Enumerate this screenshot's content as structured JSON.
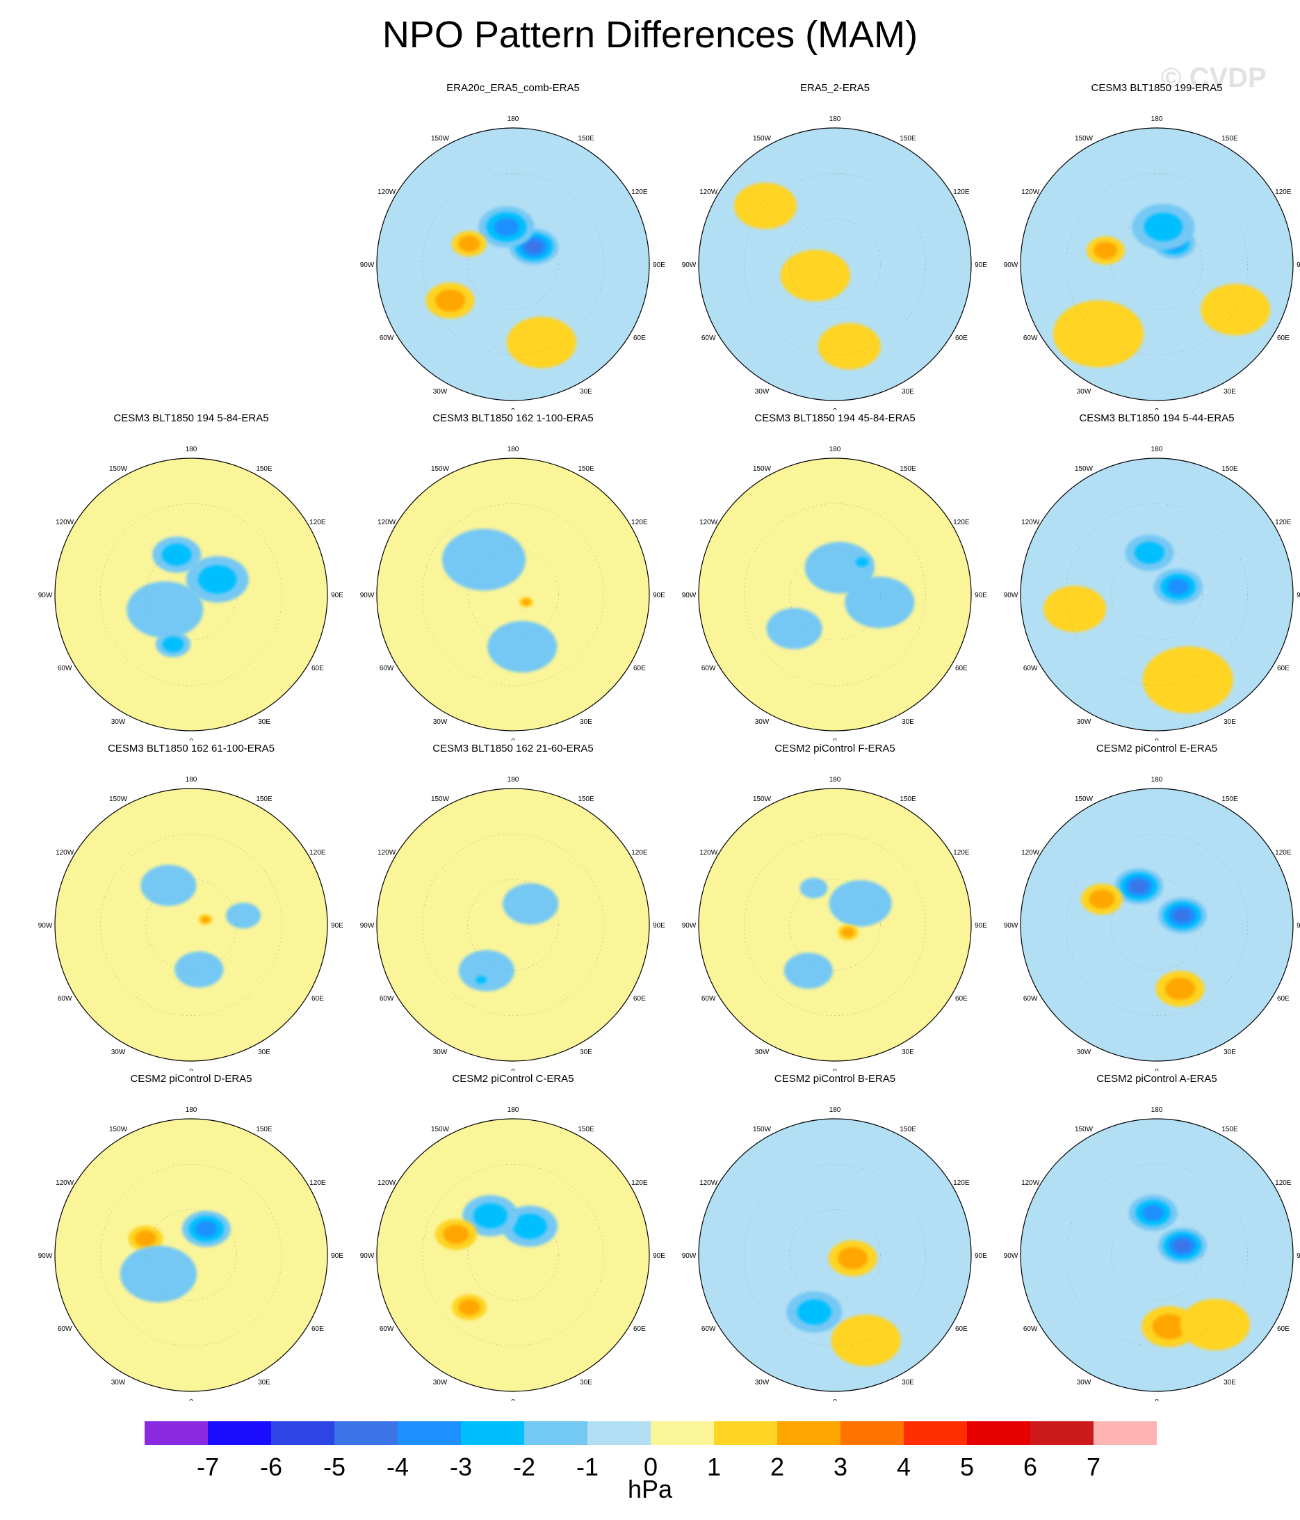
{
  "title": "NPO Pattern Differences (MAM)",
  "watermark": "© CVDP",
  "map": {
    "lon_labels": [
      "180",
      "150E",
      "120E",
      "90E",
      "60E",
      "30E",
      "0",
      "30W",
      "60W",
      "90W",
      "120W",
      "150W"
    ]
  },
  "panels": [
    {
      "title": "ERA20c_ERA5_comb-ERA5",
      "row": 0,
      "col": 1,
      "base": "light-blue",
      "blobs": [
        {
          "lat": 72,
          "lon": 130,
          "r": 14,
          "level": -4
        },
        {
          "lat": 65,
          "lon": -170,
          "r": 16,
          "level": -3
        },
        {
          "lat": 42,
          "lon": -60,
          "r": 14,
          "level": 2
        },
        {
          "lat": 58,
          "lon": -115,
          "r": 10,
          "level": 2
        },
        {
          "lat": 35,
          "lon": 20,
          "r": 20,
          "level": 1
        }
      ]
    },
    {
      "title": "ERA5_2-ERA5",
      "row": 0,
      "col": 2,
      "base": "light-blue",
      "blobs": [
        {
          "lat": 82,
          "lon": -40,
          "r": 12,
          "level": 2
        },
        {
          "lat": 75,
          "lon": -60,
          "r": 20,
          "level": 1
        },
        {
          "lat": 30,
          "lon": -130,
          "r": 18,
          "level": 1
        },
        {
          "lat": 35,
          "lon": 10,
          "r": 18,
          "level": 1
        }
      ]
    },
    {
      "title": "CESM3 BLT1850 199-ERA5",
      "row": 0,
      "col": 3,
      "base": "light-blue",
      "blobs": [
        {
          "lat": 72,
          "lon": 140,
          "r": 12,
          "level": -3
        },
        {
          "lat": 65,
          "lon": 170,
          "r": 18,
          "level": -2
        },
        {
          "lat": 55,
          "lon": -105,
          "r": 11,
          "level": 2
        },
        {
          "lat": 30,
          "lon": -40,
          "r": 26,
          "level": 1
        },
        {
          "lat": 30,
          "lon": 60,
          "r": 20,
          "level": 1
        }
      ]
    },
    {
      "title": "CESM3 BLT1850 194 5-84-ERA5",
      "row": 1,
      "col": 0,
      "base": "yellow",
      "blobs": [
        {
          "lat": 70,
          "lon": 120,
          "r": 18,
          "level": -2
        },
        {
          "lat": 62,
          "lon": -160,
          "r": 14,
          "level": -2
        },
        {
          "lat": 70,
          "lon": -60,
          "r": 22,
          "level": -1
        },
        {
          "lat": 55,
          "lon": -20,
          "r": 10,
          "level": -2
        }
      ]
    },
    {
      "title": "CESM3 BLT1850 162 1-100-ERA5",
      "row": 1,
      "col": 1,
      "base": "yellow",
      "blobs": [
        {
          "lat": 60,
          "lon": -140,
          "r": 24,
          "level": -1
        },
        {
          "lat": 55,
          "lon": 10,
          "r": 20,
          "level": -1
        },
        {
          "lat": 80,
          "lon": 60,
          "r": 4,
          "level": 2
        }
      ]
    },
    {
      "title": "CESM3 BLT1850 194 45-84-ERA5",
      "row": 1,
      "col": 2,
      "base": "yellow",
      "blobs": [
        {
          "lat": 72,
          "lon": 170,
          "r": 20,
          "level": -1
        },
        {
          "lat": 60,
          "lon": 80,
          "r": 20,
          "level": -1
        },
        {
          "lat": 62,
          "lon": 140,
          "r": 6,
          "level": -2
        },
        {
          "lat": 55,
          "lon": -50,
          "r": 16,
          "level": -1
        }
      ]
    },
    {
      "title": "CESM3 BLT1850 194 5-44-ERA5",
      "row": 1,
      "col": 3,
      "base": "light-blue",
      "blobs": [
        {
          "lat": 75,
          "lon": 110,
          "r": 14,
          "level": -3
        },
        {
          "lat": 62,
          "lon": -170,
          "r": 14,
          "level": -2
        },
        {
          "lat": 35,
          "lon": -80,
          "r": 18,
          "level": 1
        },
        {
          "lat": 30,
          "lon": 20,
          "r": 26,
          "level": 1
        }
      ]
    },
    {
      "title": "CESM3 BLT1850 162 61-100-ERA5",
      "row": 2,
      "col": 0,
      "base": "yellow",
      "blobs": [
        {
          "lat": 60,
          "lon": -150,
          "r": 16,
          "level": -1
        },
        {
          "lat": 60,
          "lon": 10,
          "r": 14,
          "level": -1
        },
        {
          "lat": 80,
          "lon": 110,
          "r": 4,
          "level": 2
        },
        {
          "lat": 55,
          "lon": 100,
          "r": 10,
          "level": -1
        }
      ]
    },
    {
      "title": "CESM3 BLT1850 162 21-60-ERA5",
      "row": 2,
      "col": 1,
      "base": "yellow",
      "blobs": [
        {
          "lat": 72,
          "lon": 140,
          "r": 16,
          "level": -1
        },
        {
          "lat": 55,
          "lon": -30,
          "r": 16,
          "level": -1
        },
        {
          "lat": 48,
          "lon": -30,
          "r": 5,
          "level": -2
        }
      ]
    },
    {
      "title": "CESM2 piControl F-ERA5",
      "row": 2,
      "col": 2,
      "base": "yellow",
      "blobs": [
        {
          "lat": 68,
          "lon": 130,
          "r": 18,
          "level": -1
        },
        {
          "lat": 80,
          "lon": 60,
          "r": 6,
          "level": 2
        },
        {
          "lat": 55,
          "lon": -30,
          "r": 14,
          "level": -1
        },
        {
          "lat": 62,
          "lon": -150,
          "r": 8,
          "level": -1
        }
      ]
    },
    {
      "title": "CESM2 piControl E-ERA5",
      "row": 2,
      "col": 3,
      "base": "light-blue",
      "blobs": [
        {
          "lat": 72,
          "lon": 110,
          "r": 14,
          "level": -4
        },
        {
          "lat": 62,
          "lon": -155,
          "r": 14,
          "level": -4
        },
        {
          "lat": 45,
          "lon": 20,
          "r": 14,
          "level": 2
        },
        {
          "lat": 50,
          "lon": -115,
          "r": 12,
          "level": 2
        }
      ]
    },
    {
      "title": "CESM2 piControl D-ERA5",
      "row": 3,
      "col": 0,
      "base": "yellow",
      "blobs": [
        {
          "lat": 70,
          "lon": 150,
          "r": 14,
          "level": -3
        },
        {
          "lat": 58,
          "lon": -110,
          "r": 10,
          "level": 2
        },
        {
          "lat": 65,
          "lon": -60,
          "r": 22,
          "level": -1
        }
      ]
    },
    {
      "title": "CESM2 piControl C-ERA5",
      "row": 3,
      "col": 1,
      "base": "yellow",
      "blobs": [
        {
          "lat": 68,
          "lon": 150,
          "r": 16,
          "level": -2
        },
        {
          "lat": 60,
          "lon": -150,
          "r": 16,
          "level": -2
        },
        {
          "lat": 50,
          "lon": -110,
          "r": 12,
          "level": 2
        },
        {
          "lat": 45,
          "lon": -40,
          "r": 10,
          "level": 2
        }
      ]
    },
    {
      "title": "CESM2 piControl B-ERA5",
      "row": 3,
      "col": 2,
      "base": "light-blue",
      "blobs": [
        {
          "lat": 80,
          "lon": 80,
          "r": 6,
          "level": 4
        },
        {
          "lat": 78,
          "lon": 80,
          "r": 14,
          "level": 2
        },
        {
          "lat": 50,
          "lon": -20,
          "r": 16,
          "level": -2
        },
        {
          "lat": 30,
          "lon": 20,
          "r": 20,
          "level": 1
        }
      ]
    },
    {
      "title": "CESM2 piControl A-ERA5",
      "row": 3,
      "col": 3,
      "base": "light-blue",
      "blobs": [
        {
          "lat": 72,
          "lon": 110,
          "r": 14,
          "level": -4
        },
        {
          "lat": 62,
          "lon": -175,
          "r": 14,
          "level": -3
        },
        {
          "lat": 42,
          "lon": 10,
          "r": 16,
          "level": 2
        },
        {
          "lat": 30,
          "lon": 40,
          "r": 20,
          "level": 1
        }
      ]
    }
  ],
  "colorbar": {
    "units": "hPa",
    "ticks": [
      "-7",
      "-6",
      "-5",
      "-4",
      "-3",
      "-2",
      "-1",
      "0",
      "1",
      "2",
      "3",
      "4",
      "5",
      "6",
      "7"
    ],
    "colors": [
      "#8a2be2",
      "#1a0dff",
      "#2e45e6",
      "#3a74e6",
      "#1e90ff",
      "#00bfff",
      "#74c8f4",
      "#b3dff5",
      "#fbf59a",
      "#ffd424",
      "#ffa600",
      "#ff7300",
      "#ff2e00",
      "#e60000",
      "#cc1a1a",
      "#ffb4b4"
    ]
  }
}
